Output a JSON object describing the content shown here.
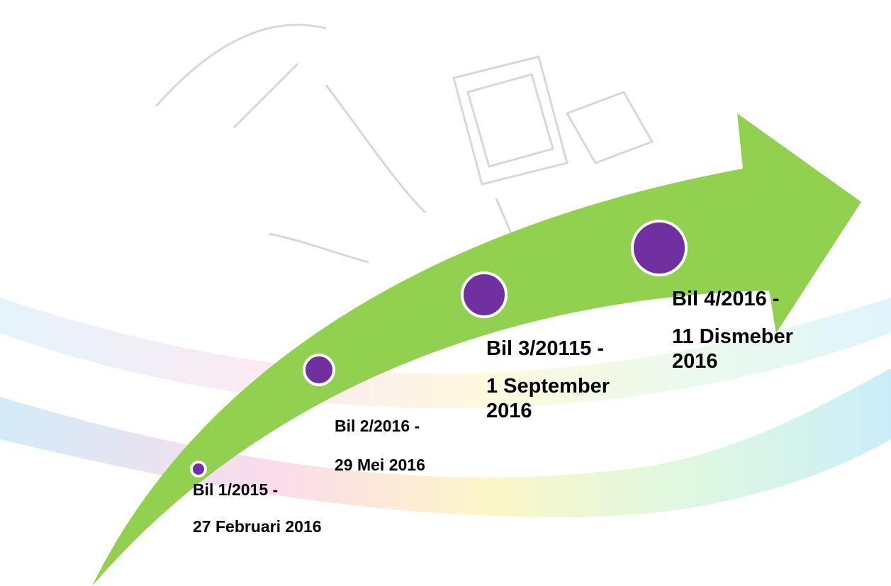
{
  "milestones": [
    {
      "title": "Bil 1/2015 -",
      "date": "27 Februari 2016"
    },
    {
      "title": "Bil 2/2016 -",
      "date": "29 Mei 2016"
    },
    {
      "title": "Bil 3/20115 -",
      "date": "1 September 2016"
    },
    {
      "title": "Bil 4/2016 -",
      "date": "11 Dismeber 2016"
    }
  ]
}
